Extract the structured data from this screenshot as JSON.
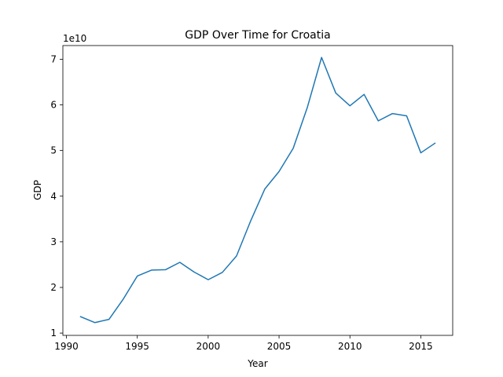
{
  "chart_data": {
    "type": "line",
    "title": "GDP Over Time for Croatia",
    "xlabel": "Year",
    "ylabel": "GDP",
    "y_offset_label": "1e10",
    "xlim": [
      1989.75,
      2017.25
    ],
    "ylim": [
      0.95,
      7.3
    ],
    "y_scale_factor": 10000000000,
    "x_ticks": [
      1990,
      1995,
      2000,
      2005,
      2010,
      2015
    ],
    "y_ticks": [
      1,
      2,
      3,
      4,
      5,
      6,
      7
    ],
    "grid": false,
    "line_color": "#1f77b4",
    "series": [
      {
        "x": [
          1991,
          1992,
          1993,
          1994,
          1995,
          1996,
          1997,
          1998,
          1999,
          2000,
          2001,
          2002,
          2003,
          2004,
          2005,
          2006,
          2007,
          2008,
          2009,
          2010,
          2011,
          2012,
          2013,
          2014,
          2015,
          2016
        ],
        "values": [
          1.36,
          1.23,
          1.3,
          1.74,
          2.25,
          2.38,
          2.39,
          2.55,
          2.34,
          2.17,
          2.33,
          2.69,
          3.46,
          4.16,
          4.54,
          5.05,
          5.95,
          7.04,
          6.26,
          5.98,
          6.23,
          5.65,
          5.81,
          5.76,
          4.95,
          5.16
        ]
      }
    ]
  }
}
